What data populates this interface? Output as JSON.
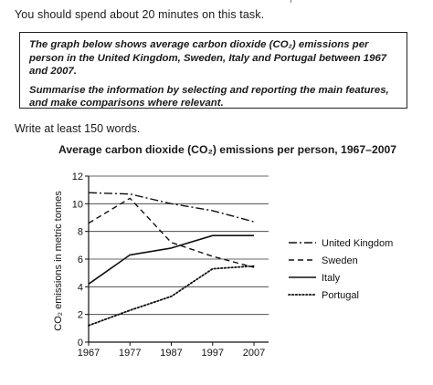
{
  "intro": "You should spend about 20 minutes on this task.",
  "task": {
    "p1": "The graph below shows average carbon dioxide (CO₂) emissions per person in the United Kingdom, Sweden, Italy and Portugal between 1967 and 2007.",
    "p2": "Summarise the information by selecting and reporting the main features, and make comparisons where relevant."
  },
  "write_instruction": "Write at least 150 words.",
  "chart_data": {
    "type": "line",
    "title": "Average carbon dioxide (CO₂) emissions per person, 1967–2007",
    "xlabel": "",
    "ylabel": "CO₂ emissions in metric tonnes",
    "x": [
      1967,
      1977,
      1987,
      1997,
      2007
    ],
    "ylim": [
      0,
      12
    ],
    "yticks": [
      0,
      2,
      4,
      6,
      8,
      10,
      12
    ],
    "grid": "horizontal",
    "legend_position": "right",
    "series": [
      {
        "name": "United Kingdom",
        "style": "dash-dot",
        "values": [
          10.8,
          10.7,
          10.0,
          9.5,
          8.7
        ]
      },
      {
        "name": "Sweden",
        "style": "dashed",
        "values": [
          8.6,
          10.4,
          7.2,
          6.2,
          5.4
        ]
      },
      {
        "name": "Italy",
        "style": "solid",
        "values": [
          4.2,
          6.3,
          6.8,
          7.7,
          7.7
        ]
      },
      {
        "name": "Portugal",
        "style": "dotted",
        "values": [
          1.2,
          2.3,
          3.3,
          5.3,
          5.5
        ]
      }
    ]
  }
}
